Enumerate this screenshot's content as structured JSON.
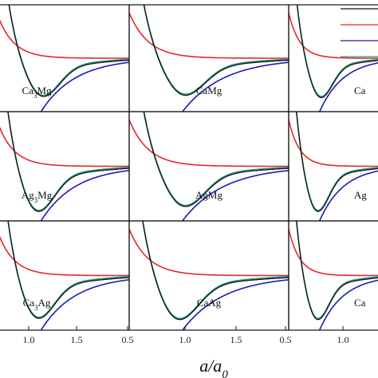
{
  "chart_data": {
    "type": "line",
    "grid": false,
    "layout": "3x3 panel grid",
    "xlabel": "a/a",
    "xlabel_subscript": "0",
    "x_tick_labels": [
      "1.0",
      "1.5",
      "0.5"
    ],
    "legend_placement": "top-right",
    "series_colors": {
      "black": "#111111",
      "red": "#e8262b",
      "blue": "#1a1ab8",
      "teal": "#2a9a8c"
    },
    "panels": [
      {
        "label": "Ca",
        "sub": "3",
        "label2": "Mg",
        "series": [
          {
            "color": "red",
            "min_x": 1.0
          },
          {
            "color": "black",
            "min_x": 1.0
          },
          {
            "color": "teal",
            "min_x": 1.0
          },
          {
            "color": "blue"
          }
        ]
      },
      {
        "label": "CaMg",
        "sub": "",
        "label2": "",
        "series": [
          {
            "color": "red"
          },
          {
            "color": "black"
          },
          {
            "color": "teal"
          },
          {
            "color": "blue"
          }
        ]
      },
      {
        "label": "Ca",
        "sub": "",
        "label2": "",
        "series": [
          {
            "color": "red"
          },
          {
            "color": "black"
          },
          {
            "color": "teal"
          },
          {
            "color": "blue"
          }
        ]
      },
      {
        "label": "Ag",
        "sub": "3",
        "label2": "Mg",
        "series": [
          {
            "color": "red"
          },
          {
            "color": "black"
          },
          {
            "color": "teal"
          },
          {
            "color": "blue"
          }
        ]
      },
      {
        "label": "AgMg",
        "sub": "",
        "label2": "",
        "series": [
          {
            "color": "red"
          },
          {
            "color": "black"
          },
          {
            "color": "teal"
          },
          {
            "color": "blue"
          }
        ]
      },
      {
        "label": "Ag",
        "sub": "",
        "label2": "",
        "series": [
          {
            "color": "red"
          },
          {
            "color": "black"
          },
          {
            "color": "teal"
          },
          {
            "color": "blue"
          }
        ]
      },
      {
        "label": "Ca",
        "sub": "3",
        "label2": "Ag",
        "series": [
          {
            "color": "red"
          },
          {
            "color": "black"
          },
          {
            "color": "teal"
          },
          {
            "color": "blue"
          }
        ]
      },
      {
        "label": "CaAg",
        "sub": "",
        "label2": "",
        "series": [
          {
            "color": "red"
          },
          {
            "color": "black"
          },
          {
            "color": "teal"
          },
          {
            "color": "blue"
          }
        ]
      },
      {
        "label": "Ca",
        "sub": "",
        "label2": "",
        "series": [
          {
            "color": "red"
          },
          {
            "color": "black"
          },
          {
            "color": "teal"
          },
          {
            "color": "blue"
          }
        ]
      }
    ]
  }
}
